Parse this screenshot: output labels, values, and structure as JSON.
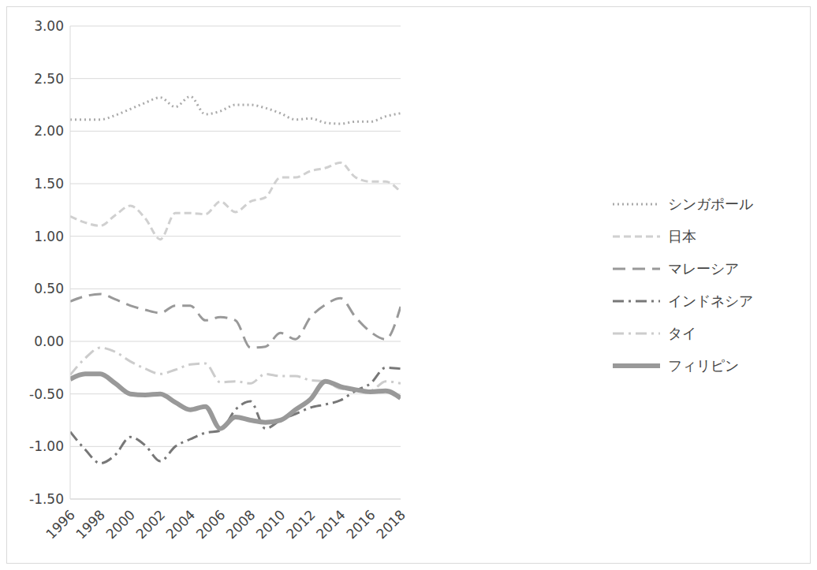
{
  "chart_data": {
    "type": "line",
    "x": [
      1996,
      1997,
      1998,
      1999,
      2000,
      2001,
      2002,
      2003,
      2004,
      2005,
      2006,
      2007,
      2008,
      2009,
      2010,
      2011,
      2012,
      2013,
      2014,
      2015,
      2016,
      2017,
      2018
    ],
    "xlim": [
      1996,
      2018
    ],
    "xticks": [
      1996,
      1998,
      2000,
      2002,
      2004,
      2006,
      2008,
      2010,
      2012,
      2014,
      2016,
      2018
    ],
    "ylim": [
      -1.5,
      3.0
    ],
    "yticks": [
      {
        "value": -1.5,
        "label": "-1.50"
      },
      {
        "value": -1.0,
        "label": "-1.00"
      },
      {
        "value": -0.5,
        "label": "-0.50"
      },
      {
        "value": 0,
        "label": "0.00"
      },
      {
        "value": 0.5,
        "label": "0.50"
      },
      {
        "value": 1.0,
        "label": "1.00"
      },
      {
        "value": 1.5,
        "label": "1.50"
      },
      {
        "value": 2.0,
        "label": "2.00"
      },
      {
        "value": 2.5,
        "label": "2.50"
      },
      {
        "value": 3.0,
        "label": "3.00"
      }
    ],
    "grid": true,
    "legend": "right",
    "marker": "none",
    "series": [
      {
        "name": "シンガポール",
        "color": "#aaaaaa",
        "line_style": "dotted",
        "values": [
          2.11,
          2.11,
          2.11,
          2.15,
          2.21,
          2.27,
          2.32,
          2.23,
          2.33,
          2.16,
          2.19,
          2.25,
          2.25,
          2.22,
          2.17,
          2.11,
          2.12,
          2.08,
          2.07,
          2.09,
          2.09,
          2.14,
          2.17
        ]
      },
      {
        "name": "日本",
        "color": "#d0d0d0",
        "line_style": "dashed",
        "values": [
          1.19,
          1.13,
          1.1,
          1.2,
          1.29,
          1.17,
          0.97,
          1.22,
          1.22,
          1.21,
          1.33,
          1.23,
          1.33,
          1.37,
          1.56,
          1.56,
          1.62,
          1.65,
          1.7,
          1.56,
          1.52,
          1.52,
          1.42
        ]
      },
      {
        "name": "マレーシア",
        "color": "#999999",
        "line_style": "long_dashed",
        "values": [
          0.38,
          0.43,
          0.45,
          0.4,
          0.34,
          0.3,
          0.27,
          0.34,
          0.34,
          0.2,
          0.23,
          0.2,
          -0.06,
          -0.05,
          0.08,
          0.02,
          0.23,
          0.35,
          0.41,
          0.23,
          0.09,
          0.02,
          0.33
        ]
      },
      {
        "name": "インドネシア",
        "color": "#777777",
        "line_style": "dash_dot",
        "values": [
          -0.86,
          -1.03,
          -1.16,
          -1.08,
          -0.91,
          -0.99,
          -1.14,
          -1.0,
          -0.93,
          -0.87,
          -0.85,
          -0.65,
          -0.57,
          -0.83,
          -0.75,
          -0.69,
          -0.63,
          -0.6,
          -0.56,
          -0.47,
          -0.4,
          -0.25,
          -0.26
        ]
      },
      {
        "name": "タイ",
        "color": "#cccccc",
        "line_style": "dash_dot",
        "values": [
          -0.32,
          -0.16,
          -0.06,
          -0.1,
          -0.19,
          -0.26,
          -0.31,
          -0.27,
          -0.22,
          -0.21,
          -0.39,
          -0.38,
          -0.4,
          -0.31,
          -0.33,
          -0.33,
          -0.37,
          -0.38,
          -0.45,
          -0.46,
          -0.47,
          -0.38,
          -0.4
        ]
      },
      {
        "name": "フィリピン",
        "color": "#999999",
        "line_style": "solid",
        "values": [
          -0.36,
          -0.31,
          -0.31,
          -0.4,
          -0.5,
          -0.51,
          -0.5,
          -0.58,
          -0.65,
          -0.62,
          -0.83,
          -0.72,
          -0.75,
          -0.77,
          -0.75,
          -0.65,
          -0.55,
          -0.38,
          -0.43,
          -0.46,
          -0.48,
          -0.47,
          -0.54
        ]
      }
    ]
  }
}
